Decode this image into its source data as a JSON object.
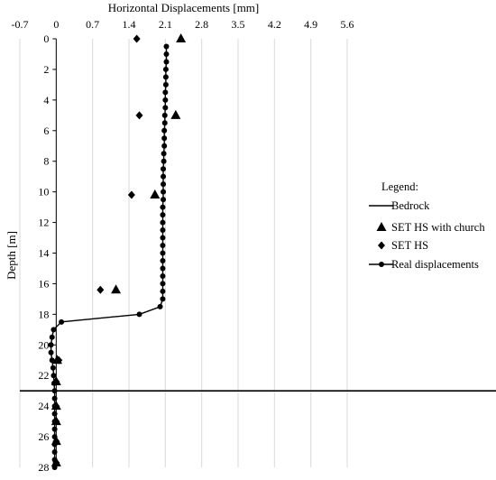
{
  "chart_data": {
    "type": "scatter",
    "xlabel": "Horizontal Displacements [mm]",
    "ylabel": "Depth [m]",
    "xlim": [
      -0.7,
      5.6
    ],
    "ylim": [
      0,
      28
    ],
    "x_ticks": [
      "-0.7",
      "0",
      "0.7",
      "1.4",
      "2.1",
      "2.8",
      "3.5",
      "4.2",
      "4.9",
      "5.6"
    ],
    "y_ticks": [
      "0",
      "2",
      "4",
      "6",
      "8",
      "10",
      "12",
      "14",
      "16",
      "18",
      "20",
      "22",
      "24",
      "26",
      "28"
    ],
    "x_axis_position": "top",
    "y_axis_inverted": true,
    "grid": "vertical",
    "legend": {
      "title": "Legend:",
      "placement": "right",
      "entries": [
        "Bedrock",
        "SET HS with church",
        "SET HS",
        "Real displacements"
      ]
    },
    "series": [
      {
        "name": "Bedrock",
        "kind": "horizontal-line",
        "depth": 23
      },
      {
        "name": "SET HS with church",
        "marker": "triangle",
        "points": [
          {
            "x": 2.4,
            "y": 0
          },
          {
            "x": 2.3,
            "y": 5
          },
          {
            "x": 1.9,
            "y": 10.2
          },
          {
            "x": 1.15,
            "y": 16.4
          },
          {
            "x": 0.02,
            "y": 21
          },
          {
            "x": 0.0,
            "y": 22.4
          },
          {
            "x": 0.0,
            "y": 24
          },
          {
            "x": 0.0,
            "y": 25
          },
          {
            "x": 0.0,
            "y": 26.3
          },
          {
            "x": 0.0,
            "y": 27.7
          }
        ]
      },
      {
        "name": "SET HS",
        "marker": "diamond",
        "points": [
          {
            "x": 1.55,
            "y": 0
          },
          {
            "x": 1.6,
            "y": 5
          },
          {
            "x": 1.45,
            "y": 10.2
          },
          {
            "x": 0.85,
            "y": 16.4
          },
          {
            "x": 0.05,
            "y": 21
          },
          {
            "x": 0.0,
            "y": 22.4
          },
          {
            "x": 0.0,
            "y": 24
          },
          {
            "x": 0.0,
            "y": 25
          },
          {
            "x": 0.0,
            "y": 26.3
          },
          {
            "x": 0.0,
            "y": 27.7
          }
        ]
      },
      {
        "name": "Real displacements",
        "marker": "circle-line",
        "points": [
          {
            "x": 2.12,
            "y": 0.5
          },
          {
            "x": 2.12,
            "y": 1.0
          },
          {
            "x": 2.12,
            "y": 1.5
          },
          {
            "x": 2.11,
            "y": 2.0
          },
          {
            "x": 2.11,
            "y": 2.5
          },
          {
            "x": 2.11,
            "y": 3.0
          },
          {
            "x": 2.1,
            "y": 3.5
          },
          {
            "x": 2.1,
            "y": 4.0
          },
          {
            "x": 2.1,
            "y": 4.5
          },
          {
            "x": 2.09,
            "y": 5.0
          },
          {
            "x": 2.09,
            "y": 5.5
          },
          {
            "x": 2.08,
            "y": 6.0
          },
          {
            "x": 2.08,
            "y": 6.5
          },
          {
            "x": 2.08,
            "y": 7.0
          },
          {
            "x": 2.07,
            "y": 7.5
          },
          {
            "x": 2.07,
            "y": 8.0
          },
          {
            "x": 2.06,
            "y": 8.5
          },
          {
            "x": 2.06,
            "y": 9.0
          },
          {
            "x": 2.06,
            "y": 9.5
          },
          {
            "x": 2.06,
            "y": 10.0
          },
          {
            "x": 2.06,
            "y": 10.5
          },
          {
            "x": 2.05,
            "y": 11.0
          },
          {
            "x": 2.05,
            "y": 11.5
          },
          {
            "x": 2.05,
            "y": 12.0
          },
          {
            "x": 2.05,
            "y": 12.5
          },
          {
            "x": 2.05,
            "y": 13.0
          },
          {
            "x": 2.05,
            "y": 13.5
          },
          {
            "x": 2.05,
            "y": 14.0
          },
          {
            "x": 2.05,
            "y": 14.5
          },
          {
            "x": 2.05,
            "y": 15.0
          },
          {
            "x": 2.05,
            "y": 15.5
          },
          {
            "x": 2.05,
            "y": 16.0
          },
          {
            "x": 2.05,
            "y": 16.5
          },
          {
            "x": 2.05,
            "y": 17.0
          },
          {
            "x": 2.0,
            "y": 17.5
          },
          {
            "x": 1.6,
            "y": 18.0
          },
          {
            "x": 0.1,
            "y": 18.5
          },
          {
            "x": -0.05,
            "y": 19.0
          },
          {
            "x": -0.08,
            "y": 19.5
          },
          {
            "x": -0.1,
            "y": 20.0
          },
          {
            "x": -0.1,
            "y": 20.5
          },
          {
            "x": -0.08,
            "y": 21.0
          },
          {
            "x": -0.06,
            "y": 21.5
          },
          {
            "x": -0.05,
            "y": 22.0
          },
          {
            "x": -0.04,
            "y": 22.5
          },
          {
            "x": -0.03,
            "y": 23.0
          },
          {
            "x": -0.03,
            "y": 23.5
          },
          {
            "x": -0.03,
            "y": 24.0
          },
          {
            "x": -0.03,
            "y": 24.5
          },
          {
            "x": -0.03,
            "y": 25.0
          },
          {
            "x": -0.03,
            "y": 25.5
          },
          {
            "x": -0.03,
            "y": 26.0
          },
          {
            "x": -0.03,
            "y": 26.5
          },
          {
            "x": -0.03,
            "y": 27.0
          },
          {
            "x": -0.03,
            "y": 27.5
          },
          {
            "x": -0.03,
            "y": 28.0
          }
        ]
      }
    ]
  }
}
